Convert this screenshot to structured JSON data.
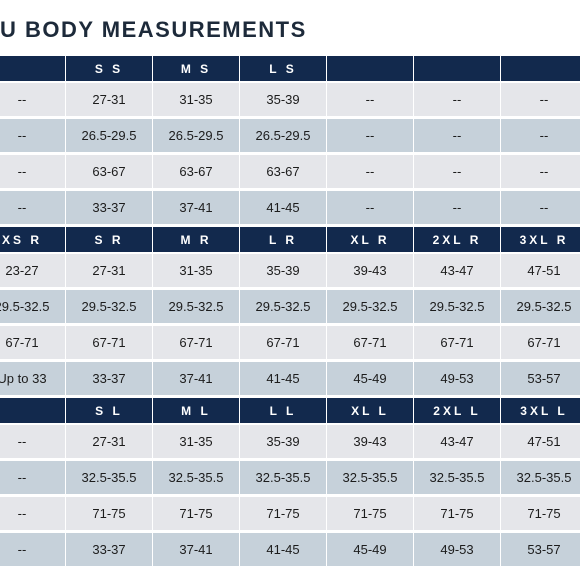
{
  "page": {
    "title": "U BODY MEASUREMENTS"
  },
  "colors": {
    "header_bg": "#12294d",
    "row_gray": "#e5e6ea",
    "row_blue": "#c6d1da"
  },
  "sections": [
    {
      "headers": [
        "",
        "S S",
        "M S",
        "L S",
        "",
        "",
        ""
      ],
      "rows": [
        [
          "--",
          "27-31",
          "31-35",
          "35-39",
          "--",
          "--",
          "--"
        ],
        [
          "--",
          "26.5-29.5",
          "26.5-29.5",
          "26.5-29.5",
          "--",
          "--",
          "--"
        ],
        [
          "--",
          "63-67",
          "63-67",
          "63-67",
          "--",
          "--",
          "--"
        ],
        [
          "--",
          "33-37",
          "37-41",
          "41-45",
          "--",
          "--",
          "--"
        ]
      ]
    },
    {
      "headers": [
        "XS R",
        "S R",
        "M R",
        "L R",
        "XL R",
        "2XL R",
        "3XL R"
      ],
      "rows": [
        [
          "23-27",
          "27-31",
          "31-35",
          "35-39",
          "39-43",
          "43-47",
          "47-51"
        ],
        [
          "29.5-32.5",
          "29.5-32.5",
          "29.5-32.5",
          "29.5-32.5",
          "29.5-32.5",
          "29.5-32.5",
          "29.5-32.5"
        ],
        [
          "67-71",
          "67-71",
          "67-71",
          "67-71",
          "67-71",
          "67-71",
          "67-71"
        ],
        [
          "Up to 33",
          "33-37",
          "37-41",
          "41-45",
          "45-49",
          "49-53",
          "53-57"
        ]
      ]
    },
    {
      "headers": [
        "",
        "S L",
        "M L",
        "L L",
        "XL L",
        "2XL L",
        "3XL L"
      ],
      "rows": [
        [
          "--",
          "27-31",
          "31-35",
          "35-39",
          "39-43",
          "43-47",
          "47-51"
        ],
        [
          "--",
          "32.5-35.5",
          "32.5-35.5",
          "32.5-35.5",
          "32.5-35.5",
          "32.5-35.5",
          "32.5-35.5"
        ],
        [
          "--",
          "71-75",
          "71-75",
          "71-75",
          "71-75",
          "71-75",
          "71-75"
        ],
        [
          "--",
          "33-37",
          "37-41",
          "41-45",
          "45-49",
          "49-53",
          "53-57"
        ]
      ]
    }
  ]
}
